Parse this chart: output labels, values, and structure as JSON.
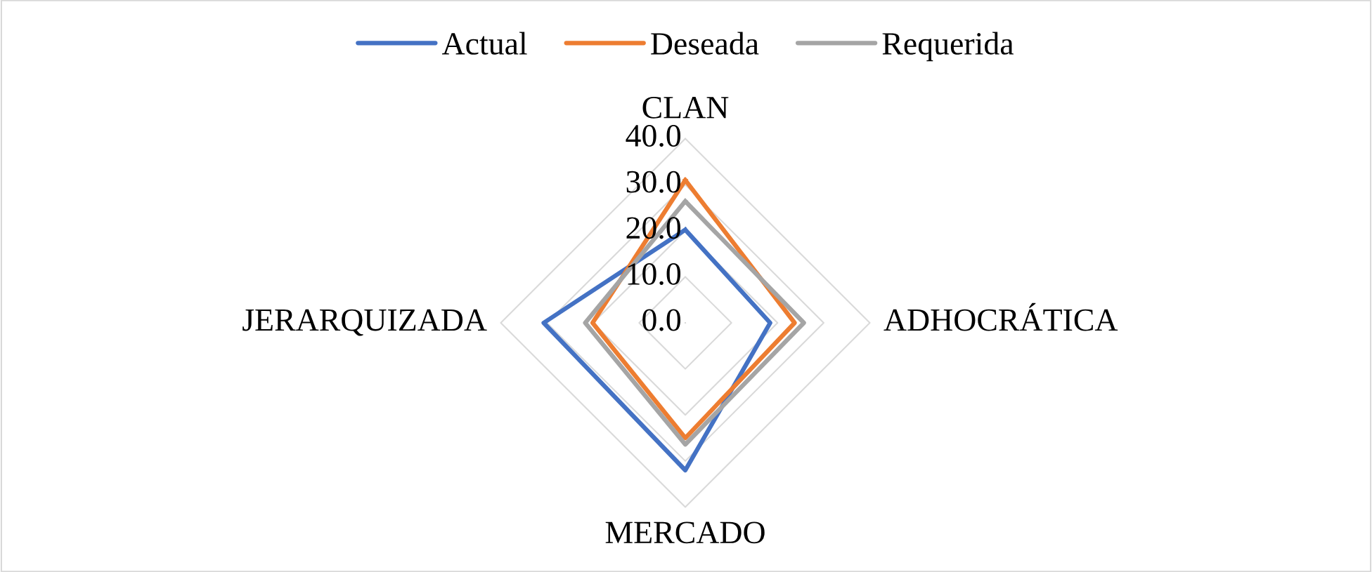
{
  "chart_data": {
    "type": "radar",
    "categories": [
      "CLAN",
      "ADHOCRÁTICA",
      "MERCADO",
      "JERARQUIZADA"
    ],
    "series": [
      {
        "name": "Actual",
        "color": "#4472c4",
        "values": [
          20.2,
          18.4,
          32.0,
          30.7
        ]
      },
      {
        "name": "Deseada",
        "color": "#ed7d31",
        "values": [
          31.0,
          23.7,
          25.0,
          20.1
        ]
      },
      {
        "name": "Requerida",
        "color": "#a5a5a5",
        "values": [
          26.4,
          25.7,
          26.4,
          21.7
        ]
      }
    ],
    "ylim": [
      0,
      40
    ],
    "yticks": [
      {
        "value": 0,
        "label": "0.0"
      },
      {
        "value": 10,
        "label": "10.0"
      },
      {
        "value": 20,
        "label": "20.0"
      },
      {
        "value": 30,
        "label": "30.0"
      },
      {
        "value": 40,
        "label": "40.0"
      }
    ],
    "grid": true,
    "legend": "top",
    "marker": "none",
    "line_style": "solid"
  }
}
